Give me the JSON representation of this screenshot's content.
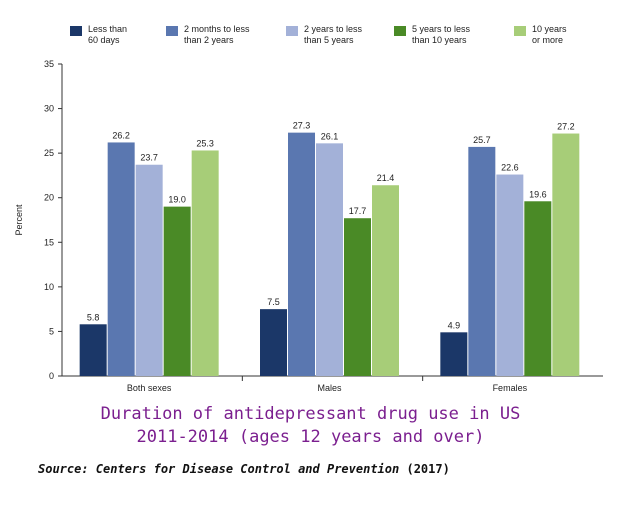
{
  "chart_data": {
    "type": "bar",
    "title": "",
    "xlabel": "",
    "ylabel": "Percent",
    "ylim": [
      0,
      35
    ],
    "yticks": [
      0,
      5,
      10,
      15,
      20,
      25,
      30,
      35
    ],
    "grid": false,
    "legend_position": "top",
    "categories": [
      "Both sexes",
      "Males",
      "Females"
    ],
    "series": [
      {
        "name": "Less than\n60 days",
        "color": "#1b3768",
        "values": [
          5.8,
          7.5,
          4.9
        ]
      },
      {
        "name": "2 months to less\nthan 2 years",
        "color": "#5a77b0",
        "values": [
          26.2,
          27.3,
          25.7
        ]
      },
      {
        "name": "2 years to less\nthan 5 years",
        "color": "#a3b1d8",
        "values": [
          23.7,
          26.1,
          22.6
        ]
      },
      {
        "name": "5 years to less\nthan 10 years",
        "color": "#4a8a26",
        "values": [
          19.0,
          17.7,
          19.6
        ]
      },
      {
        "name": "10 years\nor more",
        "color": "#a7cd78",
        "values": [
          25.3,
          21.4,
          27.2
        ]
      }
    ]
  },
  "caption": {
    "line1": "Duration of antidepressant drug use in US",
    "line2": "2011-2014 (ages 12 years and over)"
  },
  "source": {
    "org": "Source: Centers for Disease Control and Prevention",
    "year": "(2017)"
  }
}
